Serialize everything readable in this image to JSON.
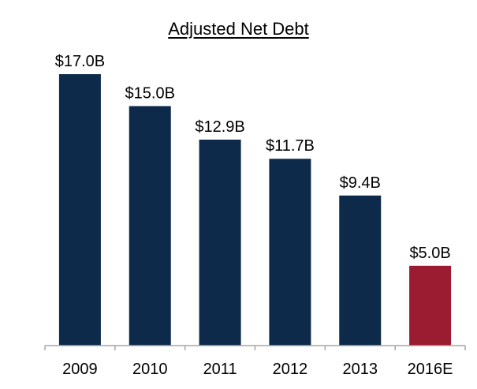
{
  "chart_data": {
    "type": "bar",
    "title": "Adjusted Net Debt",
    "categories": [
      "2009",
      "2010",
      "2011",
      "2012",
      "2013",
      "2016E"
    ],
    "values": [
      17.0,
      15.0,
      12.9,
      11.7,
      9.4,
      5.0
    ],
    "data_labels": [
      "$17.0B",
      "$15.0B",
      "$12.9B",
      "$11.7B",
      "$9.4B",
      "$5.0B"
    ],
    "bar_colors": [
      "#0d2a4a",
      "#0d2a4a",
      "#0d2a4a",
      "#0d2a4a",
      "#0d2a4a",
      "#9b1b30"
    ],
    "ylim": [
      0,
      17.0
    ],
    "xlabel": "",
    "ylabel": "",
    "grid": false,
    "legend": "none"
  }
}
